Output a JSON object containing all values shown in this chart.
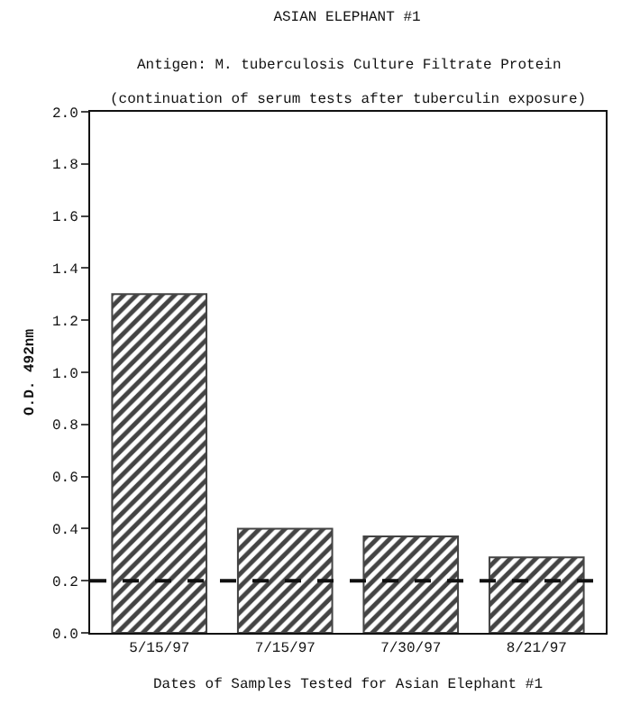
{
  "chart_data": {
    "type": "bar",
    "title": "ASIAN ELEPHANT #1",
    "subtitle": "Antigen: M. tuberculosis Culture Filtrate Protein",
    "annotations": [
      "(continuation of serum tests after tuberculin exposure)"
    ],
    "xlabel": "Dates of Samples Tested for Asian Elephant #1",
    "ylabel": "O.D. 492nm",
    "categories": [
      "5/15/97",
      "7/15/97",
      "7/30/97",
      "8/21/97"
    ],
    "values": [
      1.3,
      0.4,
      0.37,
      0.29
    ],
    "color": "#444444",
    "ylim": [
      0,
      2.0
    ],
    "yticks": [
      {
        "value": 0,
        "label": "0.0"
      },
      {
        "value": 0.2,
        "label": "0.2"
      },
      {
        "value": 0.4,
        "label": "0.4"
      },
      {
        "value": 0.6,
        "label": "0.6"
      },
      {
        "value": 0.8,
        "label": "0.8"
      },
      {
        "value": 1.0,
        "label": "1.0"
      },
      {
        "value": 1.2,
        "label": "1.2"
      },
      {
        "value": 1.4,
        "label": "1.4"
      },
      {
        "value": 1.6,
        "label": "1.6"
      },
      {
        "value": 1.8,
        "label": "1.8"
      },
      {
        "value": 2.0,
        "label": "2.0"
      }
    ],
    "ref_lines": [
      {
        "axis": "y",
        "value": 0.2,
        "line_style": "dashed",
        "color": "#111111"
      }
    ],
    "grid": false,
    "legend": false
  }
}
